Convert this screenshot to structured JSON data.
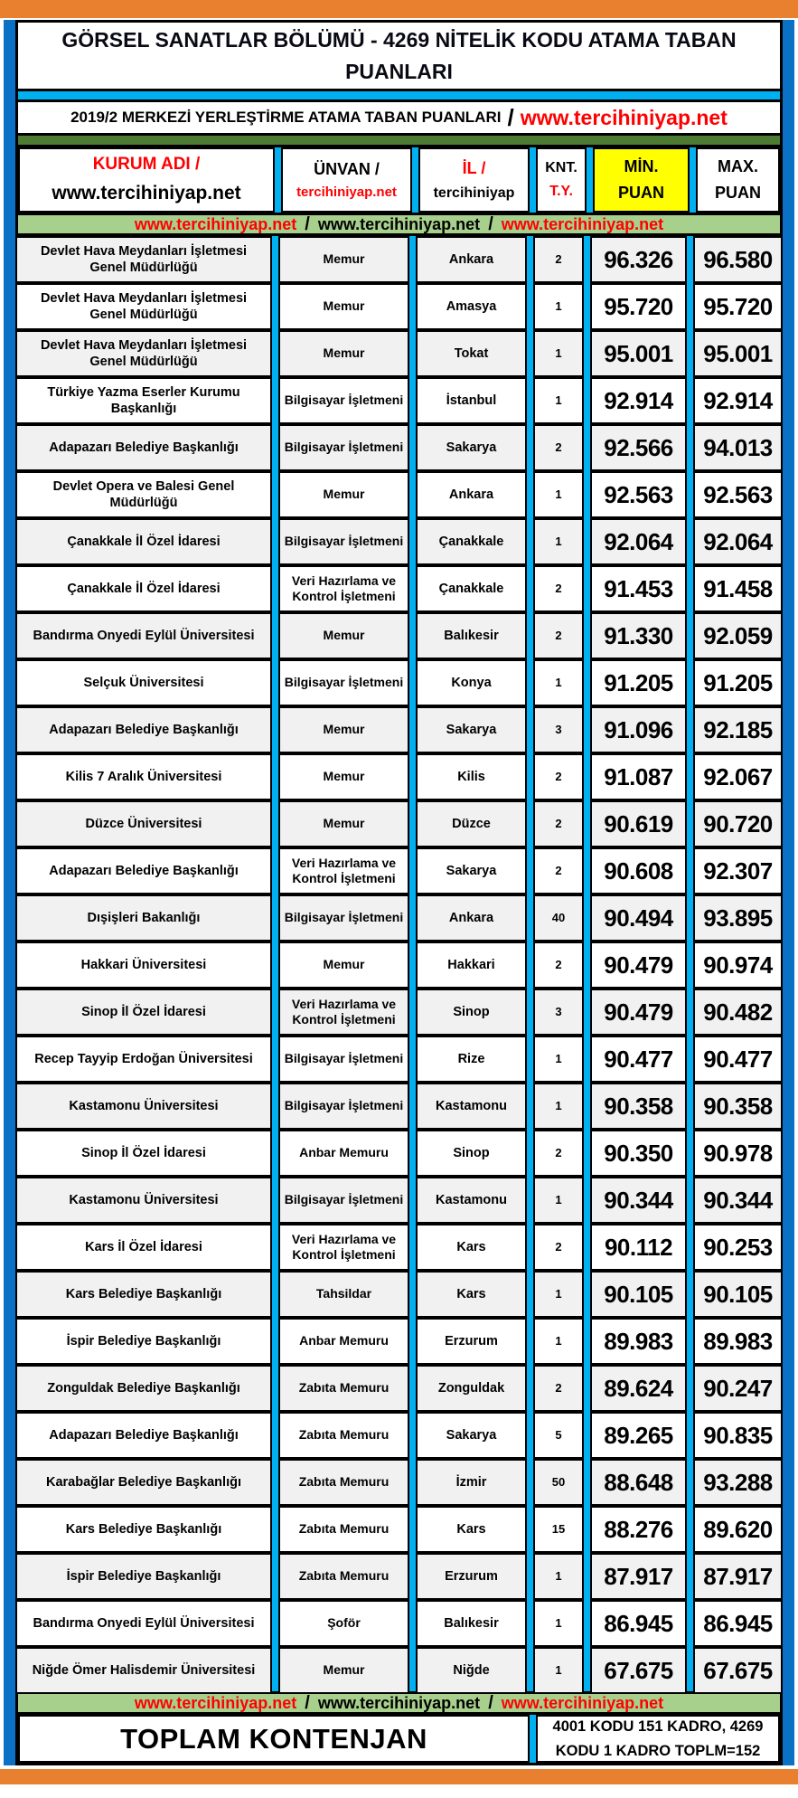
{
  "masthead": {
    "title": "GÖRSEL SANATLAR BÖLÜMÜ - 4269 NİTELİK KODU ATAMA TABAN PUANLARI",
    "subtitle_text": "2019/2 MERKEZİ YERLEŞTİRME ATAMA TABAN PUANLARI",
    "subtitle_sep": "/",
    "subtitle_url": "www.tercihiniyap.net"
  },
  "columns": {
    "kurum": {
      "l1": "KURUM ADI /",
      "l2": "www.tercihiniyap.net"
    },
    "unvan": {
      "l1": "ÜNVAN /",
      "l2": "tercihiniyap.net"
    },
    "il": {
      "l1": "İL /",
      "l2": "tercihiniyap"
    },
    "knt": {
      "l1": "KNT.",
      "l2": "T.Y."
    },
    "min": {
      "l1": "MİN.",
      "l2": "PUAN"
    },
    "max": {
      "l1": "MAX.",
      "l2": "PUAN"
    }
  },
  "banner": {
    "url1": "www.tercihiniyap.net",
    "sep": "/",
    "url2": "www.tercihiniyap.net",
    "url3": "www.tercihiniyap.net"
  },
  "rows": [
    {
      "kurum": "Devlet Hava Meydanları İşletmesi Genel Müdürlüğü",
      "unvan": "Memur",
      "il": "Ankara",
      "knt": "2",
      "min": "96.326",
      "max": "96.580"
    },
    {
      "kurum": "Devlet Hava Meydanları İşletmesi Genel Müdürlüğü",
      "unvan": "Memur",
      "il": "Amasya",
      "knt": "1",
      "min": "95.720",
      "max": "95.720"
    },
    {
      "kurum": "Devlet Hava Meydanları İşletmesi Genel Müdürlüğü",
      "unvan": "Memur",
      "il": "Tokat",
      "knt": "1",
      "min": "95.001",
      "max": "95.001"
    },
    {
      "kurum": "Türkiye Yazma Eserler Kurumu Başkanlığı",
      "unvan": "Bilgisayar İşletmeni",
      "il": "İstanbul",
      "knt": "1",
      "min": "92.914",
      "max": "92.914"
    },
    {
      "kurum": "Adapazarı Belediye Başkanlığı",
      "unvan": "Bilgisayar İşletmeni",
      "il": "Sakarya",
      "knt": "2",
      "min": "92.566",
      "max": "94.013"
    },
    {
      "kurum": "Devlet Opera ve Balesi Genel Müdürlüğü",
      "unvan": "Memur",
      "il": "Ankara",
      "knt": "1",
      "min": "92.563",
      "max": "92.563"
    },
    {
      "kurum": "Çanakkale İl Özel İdaresi",
      "unvan": "Bilgisayar İşletmeni",
      "il": "Çanakkale",
      "knt": "1",
      "min": "92.064",
      "max": "92.064"
    },
    {
      "kurum": "Çanakkale İl Özel İdaresi",
      "unvan": "Veri Hazırlama ve Kontrol İşletmeni",
      "il": "Çanakkale",
      "knt": "2",
      "min": "91.453",
      "max": "91.458"
    },
    {
      "kurum": "Bandırma Onyedi Eylül Üniversitesi",
      "unvan": "Memur",
      "il": "Balıkesir",
      "knt": "2",
      "min": "91.330",
      "max": "92.059"
    },
    {
      "kurum": "Selçuk Üniversitesi",
      "unvan": "Bilgisayar İşletmeni",
      "il": "Konya",
      "knt": "1",
      "min": "91.205",
      "max": "91.205"
    },
    {
      "kurum": "Adapazarı Belediye Başkanlığı",
      "unvan": "Memur",
      "il": "Sakarya",
      "knt": "3",
      "min": "91.096",
      "max": "92.185"
    },
    {
      "kurum": "Kilis 7 Aralık Üniversitesi",
      "unvan": "Memur",
      "il": "Kilis",
      "knt": "2",
      "min": "91.087",
      "max": "92.067"
    },
    {
      "kurum": "Düzce Üniversitesi",
      "unvan": "Memur",
      "il": "Düzce",
      "knt": "2",
      "min": "90.619",
      "max": "90.720"
    },
    {
      "kurum": "Adapazarı Belediye Başkanlığı",
      "unvan": "Veri Hazırlama ve Kontrol İşletmeni",
      "il": "Sakarya",
      "knt": "2",
      "min": "90.608",
      "max": "92.307"
    },
    {
      "kurum": "Dışişleri Bakanlığı",
      "unvan": "Bilgisayar İşletmeni",
      "il": "Ankara",
      "knt": "40",
      "min": "90.494",
      "max": "93.895"
    },
    {
      "kurum": "Hakkari Üniversitesi",
      "unvan": "Memur",
      "il": "Hakkari",
      "knt": "2",
      "min": "90.479",
      "max": "90.974"
    },
    {
      "kurum": "Sinop İl Özel İdaresi",
      "unvan": "Veri Hazırlama ve Kontrol İşletmeni",
      "il": "Sinop",
      "knt": "3",
      "min": "90.479",
      "max": "90.482"
    },
    {
      "kurum": "Recep Tayyip Erdoğan Üniversitesi",
      "unvan": "Bilgisayar İşletmeni",
      "il": "Rize",
      "knt": "1",
      "min": "90.477",
      "max": "90.477"
    },
    {
      "kurum": "Kastamonu Üniversitesi",
      "unvan": "Bilgisayar İşletmeni",
      "il": "Kastamonu",
      "knt": "1",
      "min": "90.358",
      "max": "90.358"
    },
    {
      "kurum": "Sinop İl Özel İdaresi",
      "unvan": "Anbar Memuru",
      "il": "Sinop",
      "knt": "2",
      "min": "90.350",
      "max": "90.978"
    },
    {
      "kurum": "Kastamonu Üniversitesi",
      "unvan": "Bilgisayar İşletmeni",
      "il": "Kastamonu",
      "knt": "1",
      "min": "90.344",
      "max": "90.344"
    },
    {
      "kurum": "Kars İl Özel İdaresi",
      "unvan": "Veri Hazırlama ve Kontrol İşletmeni",
      "il": "Kars",
      "knt": "2",
      "min": "90.112",
      "max": "90.253"
    },
    {
      "kurum": "Kars Belediye Başkanlığı",
      "unvan": "Tahsildar",
      "il": "Kars",
      "knt": "1",
      "min": "90.105",
      "max": "90.105"
    },
    {
      "kurum": "İspir Belediye Başkanlığı",
      "unvan": "Anbar Memuru",
      "il": "Erzurum",
      "knt": "1",
      "min": "89.983",
      "max": "89.983"
    },
    {
      "kurum": "Zonguldak Belediye Başkanlığı",
      "unvan": "Zabıta Memuru",
      "il": "Zonguldak",
      "knt": "2",
      "min": "89.624",
      "max": "90.247"
    },
    {
      "kurum": "Adapazarı Belediye Başkanlığı",
      "unvan": "Zabıta Memuru",
      "il": "Sakarya",
      "knt": "5",
      "min": "89.265",
      "max": "90.835"
    },
    {
      "kurum": "Karabağlar Belediye Başkanlığı",
      "unvan": "Zabıta Memuru",
      "il": "İzmir",
      "knt": "50",
      "min": "88.648",
      "max": "93.288"
    },
    {
      "kurum": "Kars Belediye Başkanlığı",
      "unvan": "Zabıta Memuru",
      "il": "Kars",
      "knt": "15",
      "min": "88.276",
      "max": "89.620"
    },
    {
      "kurum": "İspir Belediye Başkanlığı",
      "unvan": "Zabıta Memuru",
      "il": "Erzurum",
      "knt": "1",
      "min": "87.917",
      "max": "87.917"
    },
    {
      "kurum": "Bandırma Onyedi Eylül Üniversitesi",
      "unvan": "Şoför",
      "il": "Balıkesir",
      "knt": "1",
      "min": "86.945",
      "max": "86.945"
    },
    {
      "kurum": "Niğde Ömer Halisdemir Üniversitesi",
      "unvan": "Memur",
      "il": "Niğde",
      "knt": "1",
      "min": "67.675",
      "max": "67.675"
    }
  ],
  "footer": {
    "label": "TOPLAM KONTENJAN",
    "value": "4001 KODU 151 KADRO, 4269 KODU 1 KADRO TOPLM=152"
  },
  "colors": {
    "orange": "#E8802F",
    "side_blue": "#0B71C4",
    "cyan": "#00B0F0",
    "dark_green": "#4E7B32",
    "light_green": "#A8D08D",
    "highlight_yellow": "#FFFF00",
    "accent_red": "#FF0000",
    "row_alt_gray": "#F1F1F1"
  }
}
